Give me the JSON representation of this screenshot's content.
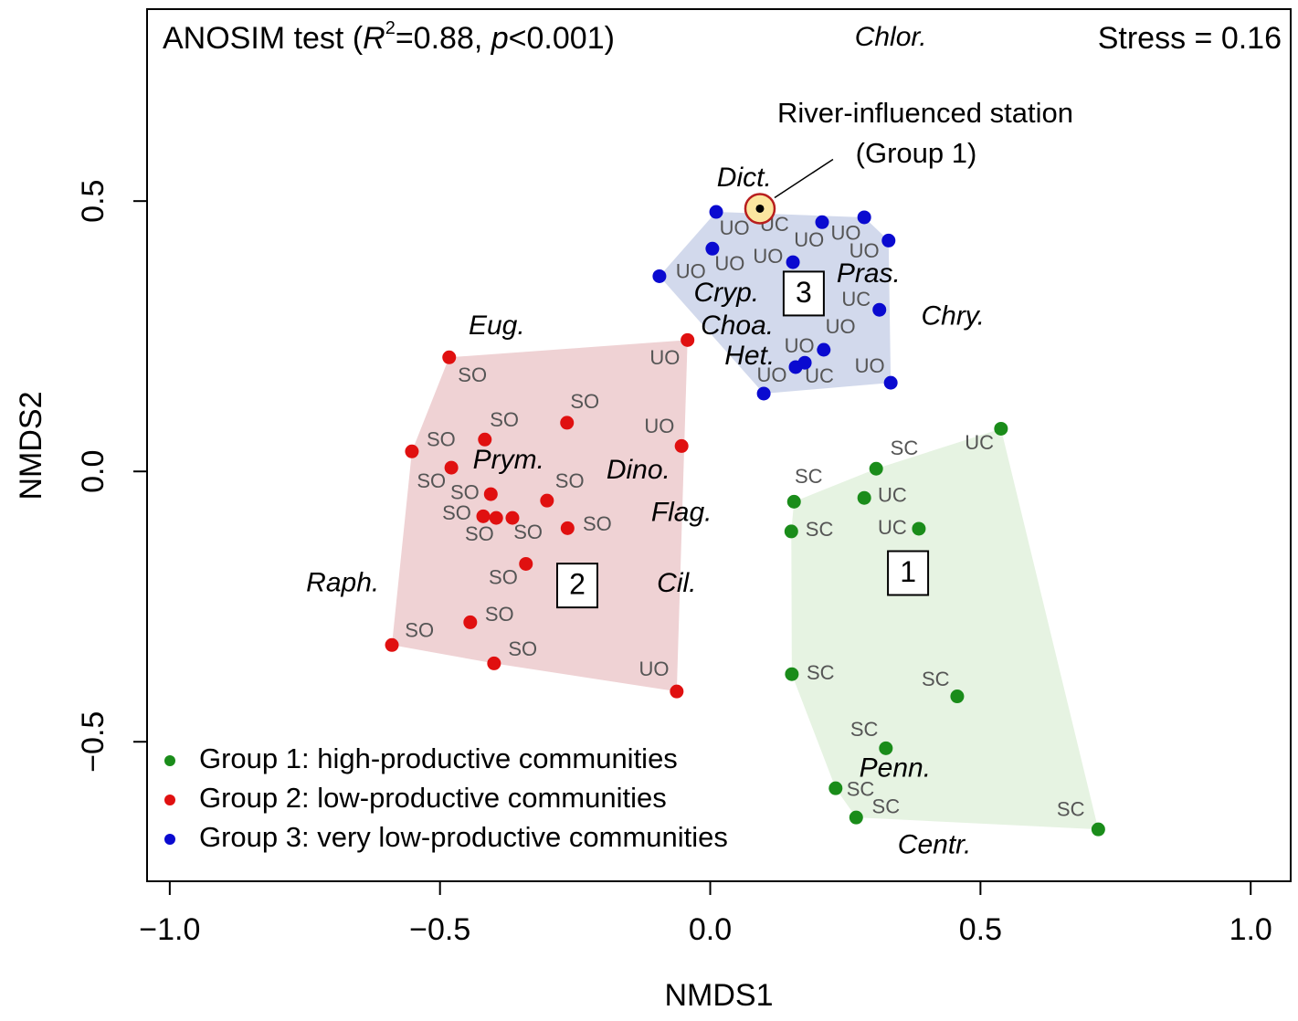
{
  "chart_data": {
    "type": "scatter",
    "annotation": [
      "ANOSIM test (",
      "R",
      "2",
      "=0.88, ",
      "p",
      "<0.001)"
    ],
    "stress": "Stress = 0.16",
    "xlabel": "NMDS1",
    "ylabel": "NMDS2",
    "xlim": [
      -1.042,
      1.074
    ],
    "ylim": [
      -0.758,
      0.855
    ],
    "xticks": [
      {
        "value": -1,
        "label": "−1.0"
      },
      {
        "value": -0.5,
        "label": "−0.5"
      },
      {
        "value": 0,
        "label": "0.0"
      },
      0.5,
      {
        "value": 1,
        "label": "1.0"
      }
    ],
    "yticks": [
      {
        "value": -0.5,
        "label": "−0.5"
      },
      {
        "value": 0,
        "label": "0.0"
      },
      0.5
    ],
    "legend": "bottom-left",
    "series": [
      {
        "name": "Group 1: high-productive communities",
        "color": "#1a8c1a",
        "hull_color": "#e6f3e2",
        "x": [
          0.538,
          0.307,
          0.285,
          0.386,
          0.155,
          0.15,
          0.151,
          0.457,
          0.325,
          0.232,
          0.27,
          0.718
        ],
        "y": [
          0.079,
          0.005,
          -0.049,
          -0.106,
          -0.056,
          -0.111,
          -0.375,
          -0.416,
          -0.512,
          -0.586,
          -0.64,
          -0.662
        ]
      },
      {
        "name": "Group 2: low-productive communities",
        "color": "#e01010",
        "hull_color": "#efd2d4",
        "x": [
          -0.483,
          -0.042,
          -0.552,
          -0.479,
          -0.417,
          -0.265,
          -0.053,
          -0.406,
          -0.302,
          -0.42,
          -0.396,
          -0.366,
          -0.264,
          -0.341,
          -0.444,
          -0.4,
          -0.589,
          -0.062
        ],
        "y": [
          0.211,
          0.243,
          0.037,
          0.007,
          0.059,
          0.09,
          0.047,
          -0.042,
          -0.054,
          -0.083,
          -0.086,
          -0.086,
          -0.105,
          -0.171,
          -0.279,
          -0.355,
          -0.321,
          -0.407
        ]
      },
      {
        "name": "Group 3: very low-productive communities",
        "color": "#0a0ad0",
        "hull_color": "#d2d9ec",
        "x": [
          0.011,
          0.207,
          0.285,
          0.33,
          0.004,
          0.153,
          -0.094,
          0.313,
          0.21,
          0.158,
          0.175,
          0.334,
          0.099
        ],
        "y": [
          0.48,
          0.461,
          0.47,
          0.427,
          0.412,
          0.387,
          0.361,
          0.299,
          0.225,
          0.193,
          0.201,
          0.164,
          0.144
        ]
      }
    ],
    "highlight": {
      "label": [
        "River-influenced station",
        "(Group 1)"
      ],
      "x": 0.092,
      "y": 0.486
    },
    "point_labels": [
      {
        "text": "SC",
        "x": 0.359,
        "y": 0.041
      },
      {
        "text": "UC",
        "x": 0.498,
        "y": 0.051
      },
      {
        "text": "SC",
        "x": 0.182,
        "y": -0.012
      },
      {
        "text": "UC",
        "x": 0.337,
        "y": -0.046
      },
      {
        "text": "UC",
        "x": 0.337,
        "y": -0.106
      },
      {
        "text": "SC",
        "x": 0.202,
        "y": -0.11
      },
      {
        "text": "SC",
        "x": 0.204,
        "y": -0.375
      },
      {
        "text": "SC",
        "x": 0.417,
        "y": -0.387
      },
      {
        "text": "SC",
        "x": 0.285,
        "y": -0.48
      },
      {
        "text": "SC",
        "x": 0.278,
        "y": -0.59
      },
      {
        "text": "SC",
        "x": 0.325,
        "y": -0.622
      },
      {
        "text": "SC",
        "x": 0.667,
        "y": -0.627
      },
      {
        "text": "SO",
        "x": -0.44,
        "y": 0.176
      },
      {
        "text": "UO",
        "x": -0.084,
        "y": 0.208
      },
      {
        "text": "SO",
        "x": -0.232,
        "y": 0.127
      },
      {
        "text": "SO",
        "x": -0.381,
        "y": 0.093
      },
      {
        "text": "UO",
        "x": -0.094,
        "y": 0.081
      },
      {
        "text": "SO",
        "x": -0.498,
        "y": 0.057
      },
      {
        "text": "SO",
        "x": -0.516,
        "y": -0.02
      },
      {
        "text": "SO",
        "x": -0.26,
        "y": -0.02
      },
      {
        "text": "SO",
        "x": -0.454,
        "y": -0.041
      },
      {
        "text": "SO",
        "x": -0.469,
        "y": -0.079
      },
      {
        "text": "SO",
        "x": -0.427,
        "y": -0.118
      },
      {
        "text": "SO",
        "x": -0.337,
        "y": -0.115
      },
      {
        "text": "SO",
        "x": -0.209,
        "y": -0.1
      },
      {
        "text": "SO",
        "x": -0.383,
        "y": -0.198
      },
      {
        "text": "SO",
        "x": -0.39,
        "y": -0.267
      },
      {
        "text": "SO",
        "x": -0.538,
        "y": -0.296
      },
      {
        "text": "SO",
        "x": -0.347,
        "y": -0.331
      },
      {
        "text": "UO",
        "x": -0.104,
        "y": -0.368
      },
      {
        "text": "UO",
        "x": 0.045,
        "y": 0.448
      },
      {
        "text": "UC",
        "x": 0.119,
        "y": 0.454
      },
      {
        "text": "UO",
        "x": 0.183,
        "y": 0.426
      },
      {
        "text": "UO",
        "x": 0.251,
        "y": 0.438
      },
      {
        "text": "UO",
        "x": 0.285,
        "y": 0.405
      },
      {
        "text": "UO",
        "x": -0.036,
        "y": 0.367
      },
      {
        "text": "UO",
        "x": 0.036,
        "y": 0.382
      },
      {
        "text": "UO",
        "x": 0.107,
        "y": 0.395
      },
      {
        "text": "UC",
        "x": 0.27,
        "y": 0.316
      },
      {
        "text": "UO",
        "x": 0.241,
        "y": 0.265
      },
      {
        "text": "UO",
        "x": 0.165,
        "y": 0.23
      },
      {
        "text": "UO",
        "x": 0.114,
        "y": 0.176
      },
      {
        "text": "UC",
        "x": 0.202,
        "y": 0.174
      },
      {
        "text": "UO",
        "x": 0.295,
        "y": 0.193
      }
    ],
    "taxa": [
      {
        "text": "Chlor.",
        "x": 0.334,
        "y": 0.801
      },
      {
        "text": "Dict.",
        "x": 0.063,
        "y": 0.541
      },
      {
        "text": "Pras.",
        "x": 0.293,
        "y": 0.363
      },
      {
        "text": "Cryp.",
        "x": 0.03,
        "y": 0.328
      },
      {
        "text": "Chry.",
        "x": 0.449,
        "y": 0.285
      },
      {
        "text": "Choa.",
        "x": 0.05,
        "y": 0.267
      },
      {
        "text": "Eug.",
        "x": -0.395,
        "y": 0.267
      },
      {
        "text": "Het.",
        "x": 0.073,
        "y": 0.211
      },
      {
        "text": "Prym.",
        "x": -0.373,
        "y": 0.019
      },
      {
        "text": "Dino.",
        "x": -0.133,
        "y": 0.0
      },
      {
        "text": "Flag.",
        "x": -0.053,
        "y": -0.078
      },
      {
        "text": "Raph.",
        "x": -0.68,
        "y": -0.208
      },
      {
        "text": "Cil.",
        "x": -0.062,
        "y": -0.209
      },
      {
        "text": "Penn.",
        "x": 0.342,
        "y": -0.551
      },
      {
        "text": "Centr.",
        "x": 0.415,
        "y": -0.693
      }
    ],
    "group_boxes": [
      {
        "label": "3",
        "x": 0.173,
        "y": 0.329
      },
      {
        "label": "2",
        "x": -0.246,
        "y": -0.211
      },
      {
        "label": "1",
        "x": 0.366,
        "y": -0.188
      }
    ]
  }
}
